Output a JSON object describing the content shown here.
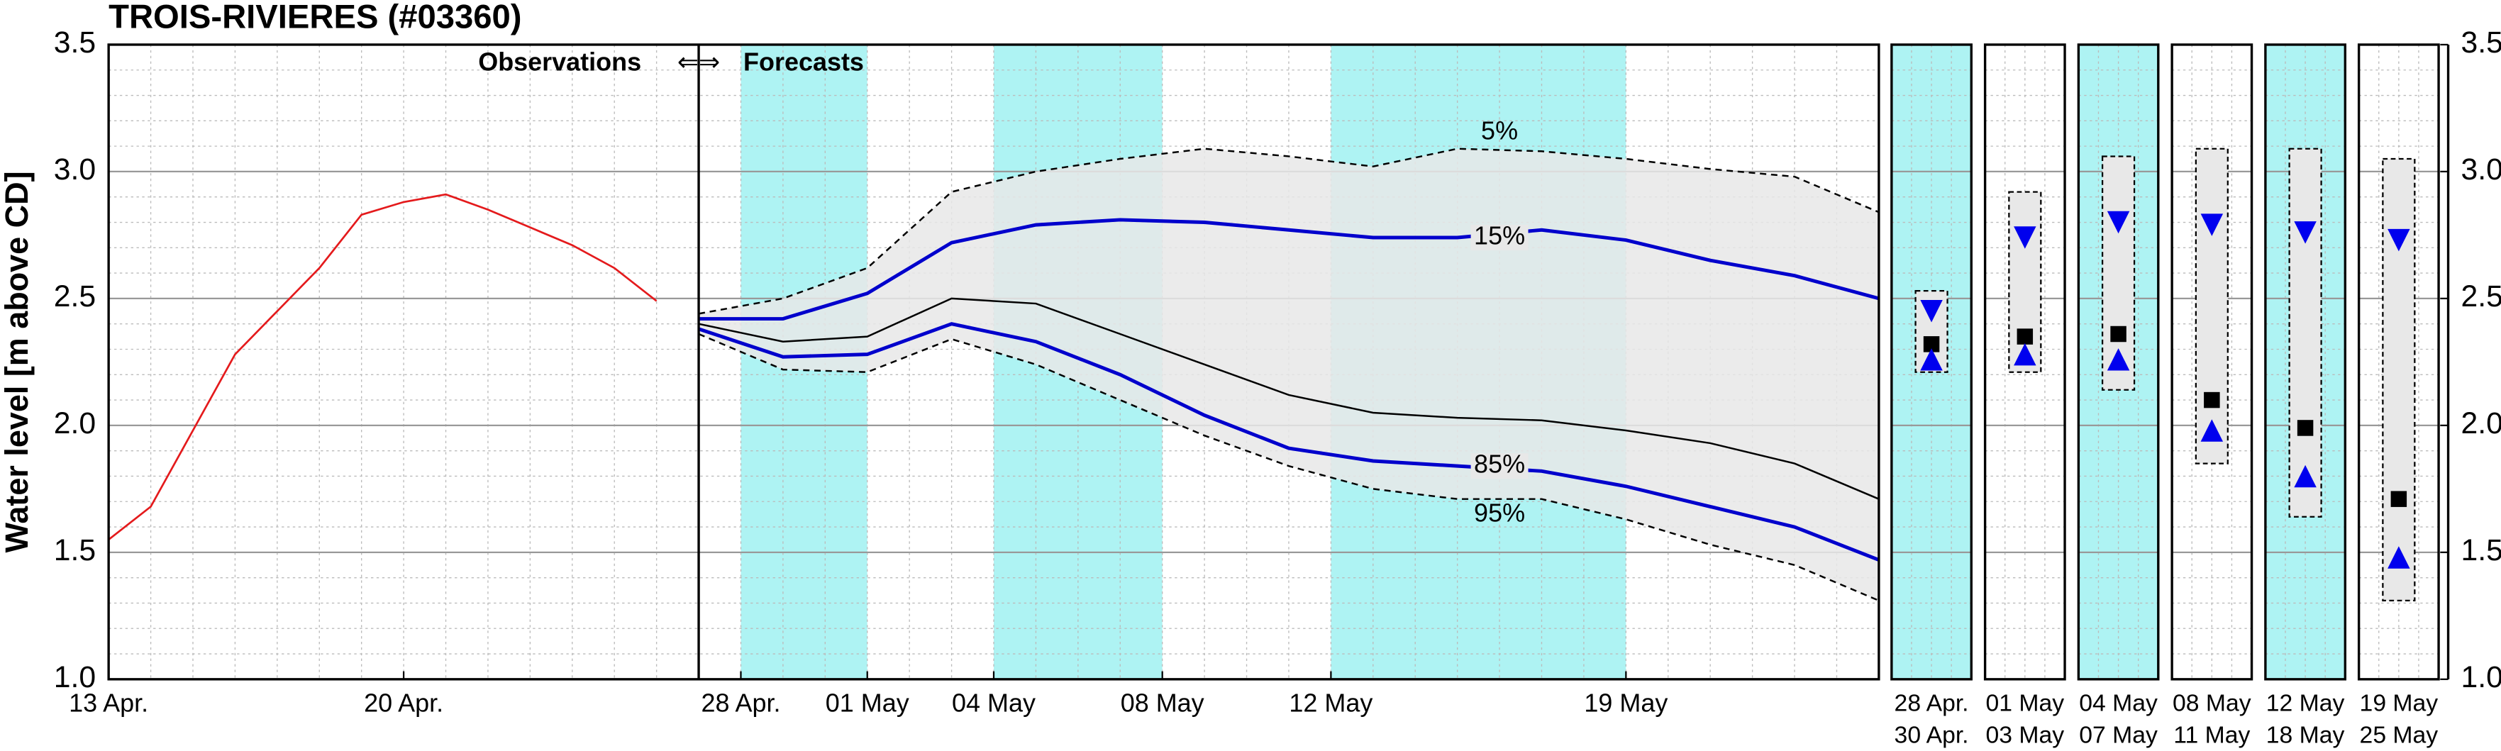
{
  "chart_data": {
    "type": "line",
    "title": "TROIS-RIVIERES (#03360)",
    "ylabel": "Water level [m above CD]",
    "ylim": [
      1.0,
      3.5
    ],
    "yticks": [
      {
        "value": 1.0,
        "label": "1.0"
      },
      1.5,
      {
        "value": 2.0,
        "label": "2.0"
      },
      2.5,
      {
        "value": 3.0,
        "label": "3.0"
      },
      3.5
    ],
    "xlim": [
      "04-13",
      "05-25"
    ],
    "xticks": [
      {
        "value": "04-13",
        "label": "13 Apr."
      },
      {
        "value": "04-20",
        "label": "20 Apr."
      },
      {
        "value": "04-28",
        "label": "28 Apr."
      },
      {
        "value": "05-01",
        "label": "01 May"
      },
      {
        "value": "05-04",
        "label": "04 May"
      },
      {
        "value": "05-08",
        "label": "08 May"
      },
      {
        "value": "05-12",
        "label": "12 May"
      },
      {
        "value": "05-19",
        "label": "19 May"
      }
    ],
    "grid": true,
    "highlight_color": "#aef3f3",
    "highlight_bands": [
      [
        "04-28",
        "05-01"
      ],
      [
        "05-04",
        "05-08"
      ],
      [
        "05-12",
        "05-19"
      ]
    ],
    "forecast_start": "04-27",
    "annotations": {
      "observations": "Observations",
      "arrows": "⇐⇒",
      "forecasts": "Forecasts"
    },
    "observed": {
      "color": "#e41a1c",
      "x": [
        "04-13",
        "04-14",
        "04-15",
        "04-16",
        "04-17",
        "04-18",
        "04-19",
        "04-20",
        "04-21",
        "04-22",
        "04-23",
        "04-24",
        "04-25",
        "04-26"
      ],
      "values": [
        1.55,
        1.68,
        1.98,
        2.28,
        2.45,
        2.62,
        2.83,
        2.88,
        2.91,
        2.85,
        2.78,
        2.71,
        2.62,
        2.49
      ]
    },
    "forecast": {
      "band_color": "#e8e8e8",
      "x": [
        "04-27",
        "04-29",
        "05-01",
        "05-03",
        "05-05",
        "05-07",
        "05-09",
        "05-11",
        "05-13",
        "05-15",
        "05-17",
        "05-19",
        "05-21",
        "05-23",
        "05-25"
      ],
      "p5": {
        "label": "5%",
        "color": "#000000",
        "values": [
          2.44,
          2.5,
          2.62,
          2.92,
          3.0,
          3.05,
          3.09,
          3.06,
          3.02,
          3.09,
          3.08,
          3.05,
          3.01,
          2.98,
          2.84
        ]
      },
      "p15": {
        "label": "15%",
        "color": "#0000cc",
        "values": [
          2.42,
          2.42,
          2.52,
          2.72,
          2.79,
          2.81,
          2.8,
          2.77,
          2.74,
          2.74,
          2.77,
          2.73,
          2.65,
          2.59,
          2.5
        ]
      },
      "median": {
        "color": "#000000",
        "values": [
          2.4,
          2.33,
          2.35,
          2.5,
          2.48,
          2.36,
          2.24,
          2.12,
          2.05,
          2.03,
          2.02,
          1.98,
          1.93,
          1.85,
          1.71
        ]
      },
      "p85": {
        "label": "85%",
        "color": "#0000cc",
        "values": [
          2.38,
          2.27,
          2.28,
          2.4,
          2.33,
          2.2,
          2.04,
          1.91,
          1.86,
          1.84,
          1.82,
          1.76,
          1.68,
          1.6,
          1.47
        ]
      },
      "p95": {
        "label": "95%",
        "color": "#000000",
        "values": [
          2.36,
          2.22,
          2.21,
          2.34,
          2.24,
          2.1,
          1.96,
          1.84,
          1.75,
          1.71,
          1.71,
          1.63,
          1.53,
          1.45,
          1.31
        ]
      }
    },
    "periods": [
      {
        "start": "28 Apr.",
        "end": "30 Apr.",
        "highlight": true,
        "max": 2.53,
        "p15": 2.45,
        "median": 2.32,
        "p85": 2.26,
        "min": 2.21
      },
      {
        "start": "01 May",
        "end": "03 May",
        "highlight": false,
        "max": 2.92,
        "p15": 2.74,
        "median": 2.35,
        "p85": 2.28,
        "min": 2.21
      },
      {
        "start": "04 May",
        "end": "07 May",
        "highlight": true,
        "max": 3.06,
        "p15": 2.8,
        "median": 2.36,
        "p85": 2.26,
        "min": 2.14
      },
      {
        "start": "08 May",
        "end": "11 May",
        "highlight": false,
        "max": 3.09,
        "p15": 2.79,
        "median": 2.1,
        "p85": 1.98,
        "min": 1.85
      },
      {
        "start": "12 May",
        "end": "18 May",
        "highlight": true,
        "max": 3.09,
        "p15": 2.76,
        "median": 1.99,
        "p85": 1.8,
        "min": 1.64
      },
      {
        "start": "19 May",
        "end": "25 May",
        "highlight": false,
        "max": 3.05,
        "p15": 2.73,
        "median": 1.71,
        "p85": 1.48,
        "min": 1.31
      }
    ]
  }
}
